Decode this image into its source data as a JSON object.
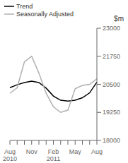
{
  "chart_data": {
    "type": "line",
    "title": "$m",
    "categories": [
      "Aug\n2010",
      null,
      null,
      "Nov",
      null,
      null,
      "Feb\n2011",
      null,
      null,
      "May",
      null,
      null,
      "Aug"
    ],
    "series": [
      {
        "name": "Trend",
        "color": "#000000",
        "values": [
          20350,
          20480,
          20580,
          20640,
          20580,
          20330,
          19980,
          19790,
          19750,
          19790,
          19900,
          20120,
          20600
        ]
      },
      {
        "name": "Seasonally Adjusted",
        "color": "#b0b0b0",
        "values": [
          20100,
          20350,
          21500,
          21750,
          21000,
          20100,
          19500,
          19250,
          19350,
          20300,
          20450,
          20500,
          20750
        ]
      }
    ],
    "ylim": [
      18000,
      23000
    ],
    "yticks": [
      18000,
      19250,
      20500,
      21750,
      23000
    ],
    "grid": false,
    "legend": "upper left"
  }
}
